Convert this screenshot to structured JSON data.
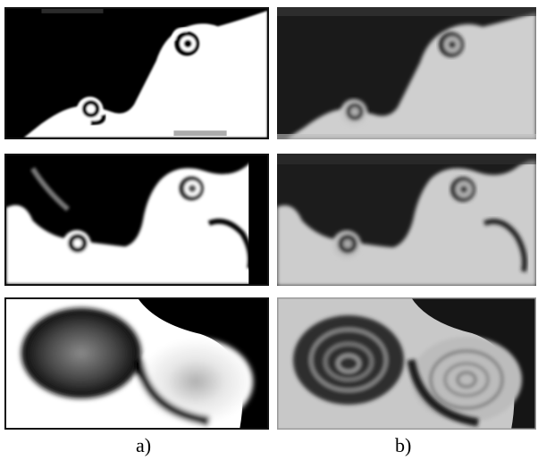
{
  "labels": {
    "a": "a)",
    "b": "b)"
  },
  "colors": {
    "light_fluid": "#ffffff",
    "dark_fluid": "#000000",
    "photo_light": "#cfcfcf",
    "photo_dark": "#1a1a1a"
  },
  "panels": [
    {
      "column": "a",
      "row": 1,
      "kind": "simulation"
    },
    {
      "column": "b",
      "row": 1,
      "kind": "photograph"
    },
    {
      "column": "a",
      "row": 2,
      "kind": "simulation"
    },
    {
      "column": "b",
      "row": 2,
      "kind": "photograph"
    },
    {
      "column": "a",
      "row": 3,
      "kind": "simulation"
    },
    {
      "column": "b",
      "row": 3,
      "kind": "photograph"
    }
  ]
}
